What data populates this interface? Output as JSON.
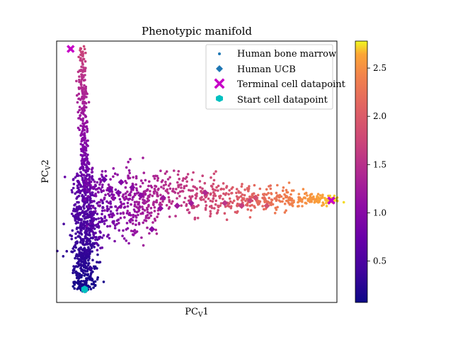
{
  "chart_data": {
    "type": "scatter",
    "title": "Phenotypic manifold",
    "xlabel": "PC",
    "xlabel_subscript": "V",
    "xlabel_suffix": "1",
    "ylabel": "PC",
    "ylabel_subscript": "V",
    "ylabel_suffix": "2",
    "xlim": [
      0,
      100
    ],
    "ylim": [
      0,
      100
    ],
    "x_ticks_visible": false,
    "y_ticks_visible": false,
    "grid": false,
    "legend_placement": "upper-right",
    "colormap": "plasma",
    "colorbar": {
      "range": [
        0.07,
        2.78
      ],
      "ticks": [
        "0.5",
        "1.0",
        "1.5",
        "2.0",
        "2.5"
      ],
      "tick_values": [
        0.5,
        1.0,
        1.5,
        2.0,
        2.5
      ]
    },
    "series": [
      {
        "name": "Human bone marrow",
        "marker": "circle",
        "color": "#1f77b4",
        "cluster_description": "dense L-shaped cloud of small dots colored by the colorbar value",
        "branches": [
          {
            "from": [
              9,
              98
            ],
            "to": [
              10,
              50
            ],
            "value_from": 1.75,
            "value_to": 0.75
          },
          {
            "from": [
              10,
              50
            ],
            "to": [
              10,
              5
            ],
            "value_from": 0.75,
            "value_to": 0.1
          },
          {
            "from": [
              10,
              42
            ],
            "to": [
              100,
              39
            ],
            "value_from": 0.85,
            "value_to": 2.75
          }
        ]
      },
      {
        "name": "Human UCB",
        "marker": "diamond",
        "color": "#1f77b4",
        "points": [
          [
            17,
            47,
            0.75
          ],
          [
            19,
            43,
            0.85
          ],
          [
            22,
            42,
            0.9
          ],
          [
            23,
            46,
            0.95
          ],
          [
            27,
            44,
            1.0
          ],
          [
            30,
            41,
            1.05
          ],
          [
            37,
            36,
            1.1
          ],
          [
            43,
            37,
            1.2
          ],
          [
            48,
            38,
            1.25
          ],
          [
            53,
            42,
            1.4
          ],
          [
            60,
            38,
            1.55
          ],
          [
            66,
            37,
            1.65
          ],
          [
            69,
            39,
            1.75
          ],
          [
            71,
            40,
            1.85
          ],
          [
            12,
            13,
            0.3
          ],
          [
            34,
            28,
            1.0
          ],
          [
            38,
            40,
            1.2
          ],
          [
            75,
            37,
            1.9
          ]
        ]
      },
      {
        "name": "Terminal cell datapoint",
        "marker": "x",
        "color": "#c700c7",
        "points": [
          [
            5,
            97
          ],
          [
            98,
            39
          ]
        ]
      },
      {
        "name": "Start cell datapoint",
        "marker": "hexagon",
        "color": "#00c0c0",
        "points": [
          [
            10,
            5
          ]
        ]
      }
    ]
  }
}
